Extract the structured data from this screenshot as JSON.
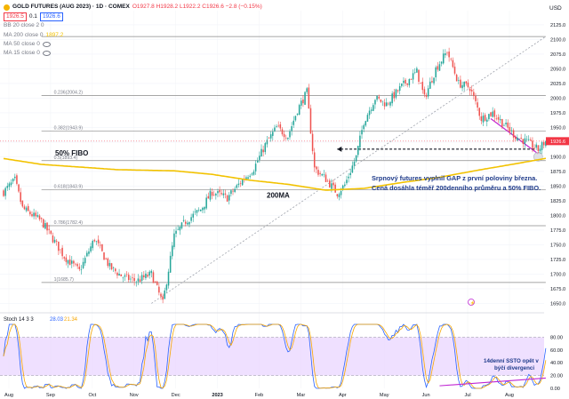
{
  "header": {
    "symbol": "GOLD FUTURES (AUG 2023) · 1D · COMEX",
    "ohlc": "O1927.8 H1928.2 L1922.2 C1926.6 −2.8 (−0.15%)",
    "bid": "1926.5",
    "spread": "0.1",
    "ask": "1926.6",
    "currency": "USD",
    "indicators": [
      {
        "label": "BB 20 close 2 0",
        "value": ""
      },
      {
        "label": "MA 200 close 0",
        "value": "1897.2"
      },
      {
        "label": "MA 50 close 0",
        "value": ""
      },
      {
        "label": "MA 15 close 0",
        "value": ""
      }
    ]
  },
  "colors": {
    "up": "#26a69a",
    "down": "#ef5350",
    "ma200": "#f2c200",
    "fib": "#8a8a8a",
    "annotation_line": "#c026d3",
    "stoch_k": "#2962ff",
    "stoch_d": "#f7a600",
    "stoch_band": "#e9d5ff",
    "current_price": "#f23645"
  },
  "chart_data": [
    {
      "type": "candlestick",
      "title": "GOLD FUTURES (AUG 2023) · 1D · COMEX",
      "ylim": [
        1640,
        2140
      ],
      "y_ticks": [
        1650,
        1675,
        1700,
        1725,
        1750,
        1775,
        1800,
        1825,
        1850,
        1875,
        1900,
        1925,
        1950,
        1975,
        2000,
        2025,
        2050,
        2075,
        2100,
        2125
      ],
      "x_ticks": [
        "Aug",
        "Sep",
        "Oct",
        "Nov",
        "Dec",
        "2023",
        "Feb",
        "Mar",
        "Apr",
        "May",
        "Jun",
        "Jul",
        "Aug"
      ],
      "current_price": 1926.6,
      "fib_levels": [
        {
          "label": "0.236(2004.2)",
          "value": 2004.2
        },
        {
          "label": "0.382(1943.9)",
          "value": 1943.9
        },
        {
          "label": "0.5(1893.4)",
          "value": 1893.4
        },
        {
          "label": "0.618(1843.9)",
          "value": 1843.9
        },
        {
          "label": "0.786(1782.4)",
          "value": 1782.4
        },
        {
          "label": "1(1685.7)",
          "value": 1685.7
        }
      ],
      "fib_top": 2105,
      "series": [
        {
          "name": "Gold futures",
          "anchors": [
            [
              0,
              1840
            ],
            [
              6,
              1860
            ],
            [
              10,
              1812
            ],
            [
              20,
              1790
            ],
            [
              32,
              1730
            ],
            [
              40,
              1705
            ],
            [
              48,
              1760
            ],
            [
              56,
              1712
            ],
            [
              63,
              1695
            ],
            [
              70,
              1688
            ],
            [
              78,
              1700
            ],
            [
              84,
              1650
            ],
            [
              90,
              1765
            ],
            [
              96,
              1790
            ],
            [
              104,
              1810
            ],
            [
              110,
              1840
            ],
            [
              118,
              1830
            ],
            [
              126,
              1860
            ],
            [
              132,
              1880
            ],
            [
              138,
              1920
            ],
            [
              144,
              1950
            ],
            [
              150,
              1935
            ],
            [
              155,
              1980
            ],
            [
              160,
              2010
            ],
            [
              164,
              1880
            ],
            [
              170,
              1862
            ],
            [
              176,
              1838
            ],
            [
              180,
              1852
            ],
            [
              186,
              1900
            ],
            [
              190,
              1960
            ],
            [
              196,
              2000
            ],
            [
              202,
              1990
            ],
            [
              210,
              2020
            ],
            [
              218,
              2045
            ],
            [
              222,
              2000
            ],
            [
              228,
              2050
            ],
            [
              234,
              2080
            ],
            [
              240,
              2025
            ],
            [
              246,
              2018
            ],
            [
              252,
              1965
            ],
            [
              258,
              1975
            ],
            [
              264,
              1955
            ],
            [
              270,
              1935
            ],
            [
              276,
              1925
            ],
            [
              282,
              1912
            ],
            [
              286,
              1926.6
            ]
          ]
        },
        {
          "name": "MA 200",
          "anchors": [
            [
              0,
              1897
            ],
            [
              20,
              1887
            ],
            [
              60,
              1878
            ],
            [
              90,
              1876
            ],
            [
              110,
              1870
            ],
            [
              130,
              1860
            ],
            [
              150,
              1853
            ],
            [
              170,
              1843
            ],
            [
              190,
              1846
            ],
            [
              210,
              1856
            ],
            [
              230,
              1865
            ],
            [
              250,
              1877
            ],
            [
              270,
              1888
            ],
            [
              286,
              1897.2
            ]
          ]
        }
      ],
      "annotations": [
        {
          "text": "50% FIBO"
        },
        {
          "text": "200MA"
        },
        {
          "text": "Srpnový futures vyplnil GAP z první poloviny března."
        },
        {
          "text": "Cená dosáhla téměř 200denního průměru a 50% FIBO."
        }
      ]
    },
    {
      "type": "line",
      "title": "Stoch 14 3 3",
      "legend_k": "28.03",
      "legend_d": "21.34",
      "ylim": [
        0,
        100
      ],
      "y_ticks": [
        0,
        20,
        40,
        60,
        80
      ],
      "band": [
        20,
        80
      ],
      "annotation": [
        "14denní SSTO opět v",
        "býčí divergenci"
      ]
    }
  ]
}
